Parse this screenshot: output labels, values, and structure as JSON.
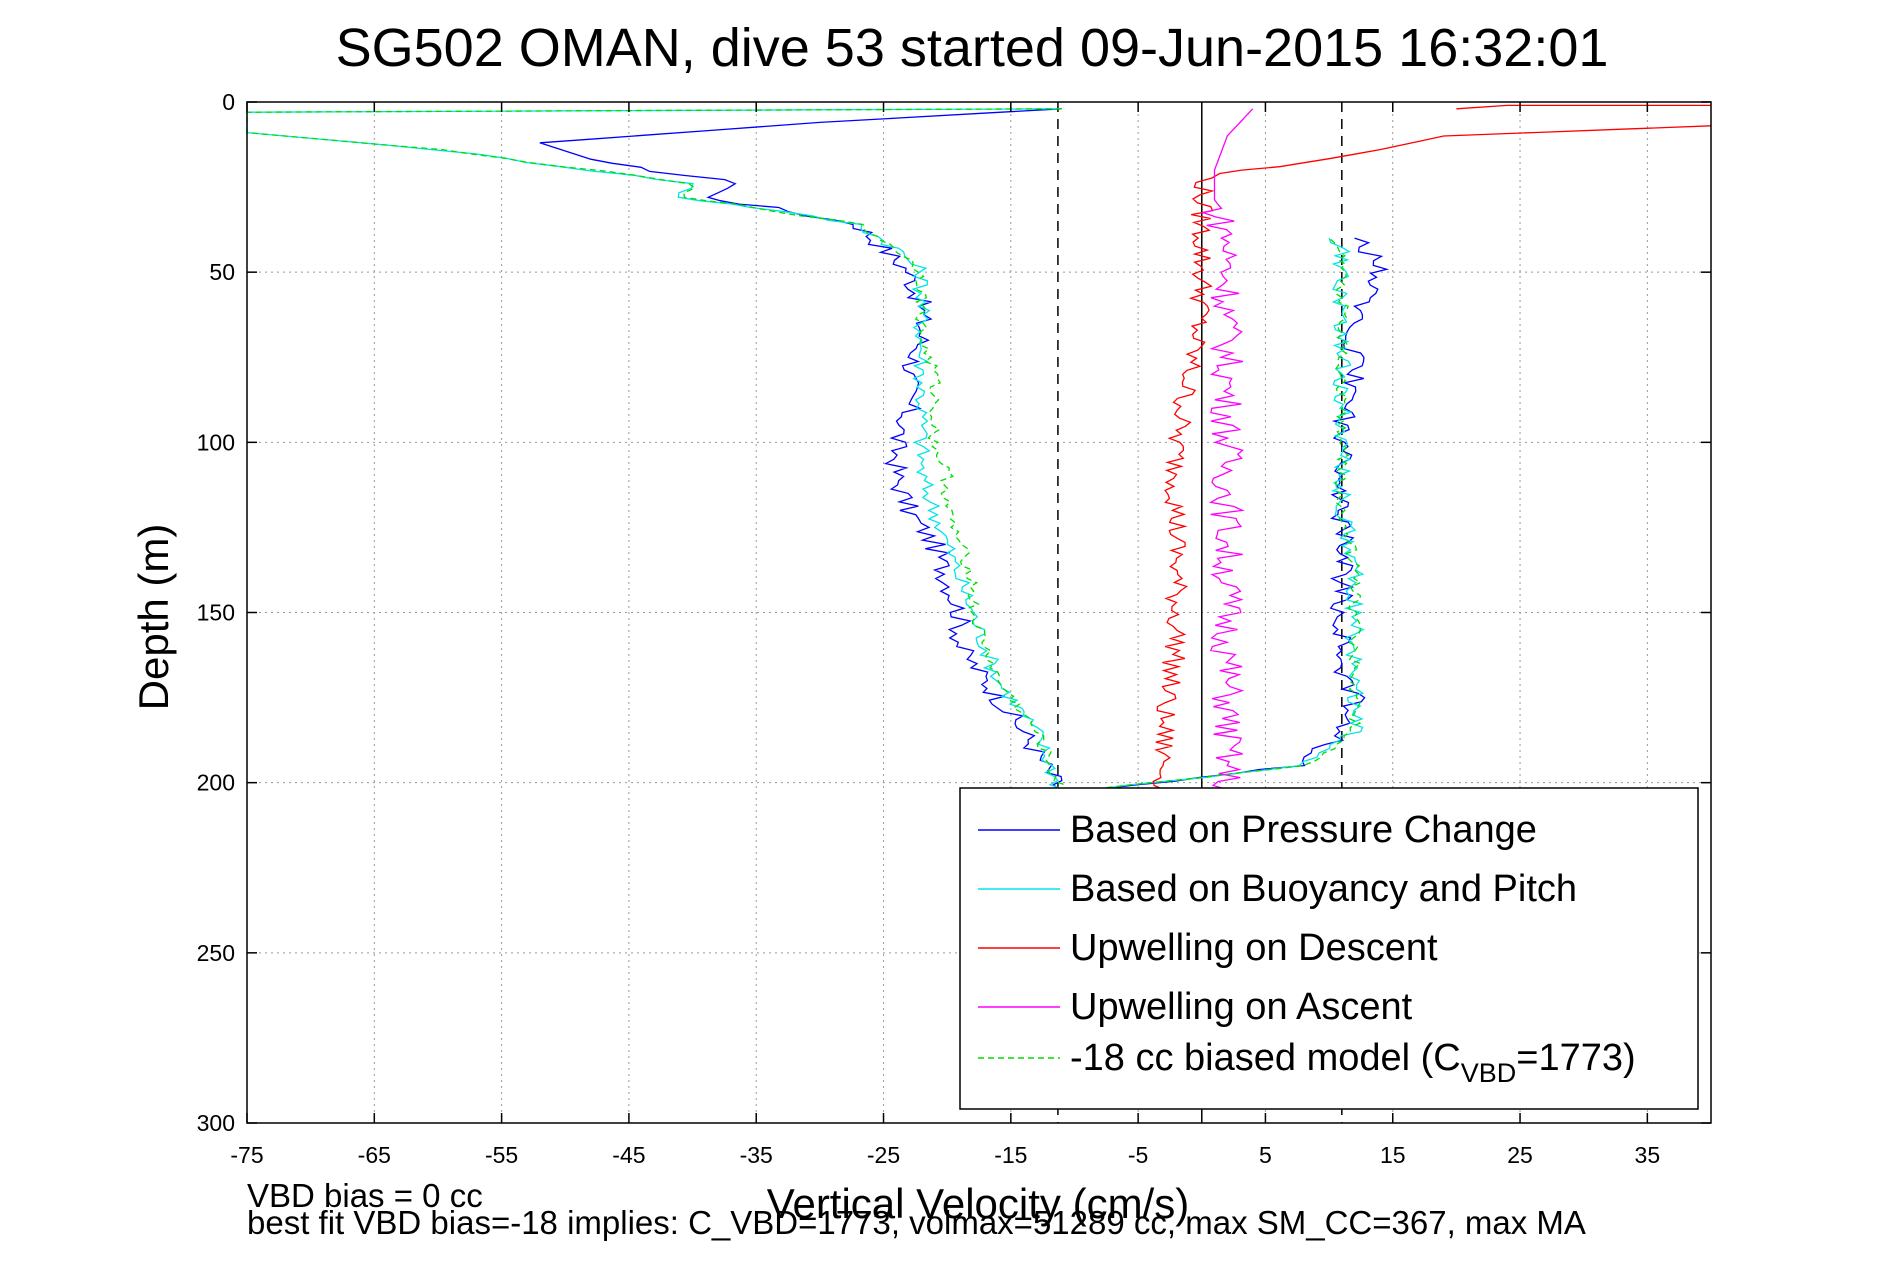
{
  "chart_data": {
    "type": "line",
    "title": "SG502 OMAN, dive 53 started 09-Jun-2015 16:32:01",
    "xlabel": "Vertical Velocity (cm/s)",
    "ylabel": "Depth (m)",
    "xlim": [
      -75,
      40
    ],
    "ylim": [
      0,
      300
    ],
    "y_reversed": true,
    "xticks": [
      -75,
      -65,
      -55,
      -45,
      -35,
      -25,
      -15,
      -5,
      5,
      15,
      25,
      35
    ],
    "yticks": [
      0,
      50,
      100,
      150,
      200,
      250,
      300
    ],
    "grid": true,
    "reference_lines": [
      {
        "x": -11.3,
        "style": "dashed",
        "color": "#000000"
      },
      {
        "x": 0,
        "style": "solid",
        "color": "#000000"
      },
      {
        "x": 11,
        "style": "dashed",
        "color": "#000000"
      }
    ],
    "legend": {
      "placement": "bottom-right",
      "entries": [
        {
          "text": "Based on Pressure Change",
          "series": 0
        },
        {
          "text": "Based on Buoyancy and Pitch",
          "series": 1
        },
        {
          "text": "Upwelling on Descent",
          "series": 2
        },
        {
          "text": "Upwelling on Ascent",
          "series": 3
        },
        {
          "text_pre": "-18 cc biased model (C",
          "text_sub": "VBD",
          "text_post": "=1773)",
          "series": 4
        }
      ]
    },
    "series": [
      {
        "name": "Based on Pressure Change",
        "color": "#0000ff",
        "style": "solid",
        "x": [
          -11,
          -30,
          -52,
          -47,
          -36,
          -39,
          -34,
          -27,
          -25,
          -23,
          -22,
          -22,
          -23,
          -23,
          -24,
          -24,
          -23,
          -21,
          -20,
          -19,
          -19,
          -17,
          -14,
          -11
        ],
        "y": [
          2,
          6,
          12,
          18,
          24,
          28,
          31,
          36,
          43,
          50,
          60,
          70,
          80,
          90,
          100,
          110,
          120,
          130,
          140,
          150,
          160,
          170,
          185,
          203
        ],
        "x2": [
          -11,
          8,
          11,
          12,
          11,
          11,
          11,
          11,
          11,
          11,
          11,
          12,
          12,
          12,
          13,
          14,
          13,
          12
        ],
        "y2": [
          203,
          195,
          185,
          175,
          165,
          155,
          145,
          135,
          120,
          105,
          95,
          85,
          75,
          65,
          55,
          48,
          44,
          40
        ]
      },
      {
        "name": "Based on Buoyancy and Pitch",
        "color": "#00e5e5",
        "style": "solid",
        "x": [
          -11,
          -75,
          -75,
          -60,
          -40,
          -41,
          -35,
          -27,
          -24,
          -22,
          -22,
          -22,
          -22,
          -22,
          -22,
          -22,
          -21,
          -20,
          -19,
          -18,
          -17,
          -16,
          -13,
          -11
        ],
        "y": [
          2,
          3,
          9,
          14,
          24,
          28,
          31,
          36,
          43,
          50,
          60,
          70,
          80,
          90,
          100,
          110,
          120,
          130,
          140,
          150,
          160,
          170,
          185,
          203
        ],
        "x2": [
          -11,
          8,
          12,
          12,
          12,
          12,
          12,
          12,
          11,
          11,
          11,
          11,
          11,
          11,
          11,
          10
        ],
        "y2": [
          203,
          195,
          185,
          175,
          165,
          155,
          145,
          135,
          120,
          105,
          90,
          75,
          60,
          50,
          44,
          40
        ]
      },
      {
        "name": "Upwelling on Descent",
        "color": "#ff0000",
        "style": "solid",
        "x": [
          40,
          19,
          14,
          8,
          1,
          0,
          0,
          0,
          -1,
          -2,
          -2,
          -2,
          -2,
          -3,
          -3,
          -3
        ],
        "y": [
          7,
          10,
          14,
          18,
          21,
          25,
          40,
          60,
          80,
          100,
          120,
          140,
          160,
          180,
          195,
          202
        ],
        "x2": [
          40,
          24,
          20
        ],
        "y2": [
          1,
          1,
          2
        ]
      },
      {
        "name": "Upwelling on Ascent",
        "color": "#ff00ff",
        "style": "solid",
        "x": [
          4,
          2,
          1,
          1,
          2,
          2,
          2,
          2,
          2,
          2,
          2,
          2,
          2,
          2,
          2,
          2,
          2,
          2
        ],
        "y": [
          2,
          10,
          20,
          30,
          40,
          50,
          60,
          70,
          80,
          90,
          100,
          120,
          140,
          150,
          160,
          180,
          195,
          202
        ]
      },
      {
        "name": "-18 cc biased model (C_VBD=1773)",
        "color": "#00dd00",
        "style": "dashed",
        "x": [
          -11,
          -75,
          -75,
          -60,
          -40,
          -41,
          -35,
          -27,
          -24,
          -22,
          -22,
          -22,
          -21,
          -21,
          -21,
          -20,
          -20,
          -19,
          -18,
          -18,
          -17,
          -16,
          -13,
          -11
        ],
        "y": [
          2,
          3,
          9,
          14,
          24,
          28,
          31,
          36,
          43,
          50,
          60,
          70,
          80,
          90,
          100,
          110,
          120,
          130,
          140,
          150,
          160,
          170,
          185,
          203
        ],
        "x2": [
          -11,
          8,
          12,
          12,
          12,
          12,
          12,
          12,
          11,
          11,
          11,
          11,
          11,
          11,
          11,
          10
        ],
        "y2": [
          203,
          195,
          185,
          175,
          165,
          155,
          145,
          135,
          120,
          105,
          90,
          75,
          60,
          50,
          44,
          40
        ]
      }
    ]
  },
  "notes": {
    "line1": "VBD bias = 0 cc",
    "line2": "best fit VBD bias=-18 implies: C_VBD=1773, volmax=51289 cc, max SM_CC=367, max MA"
  }
}
